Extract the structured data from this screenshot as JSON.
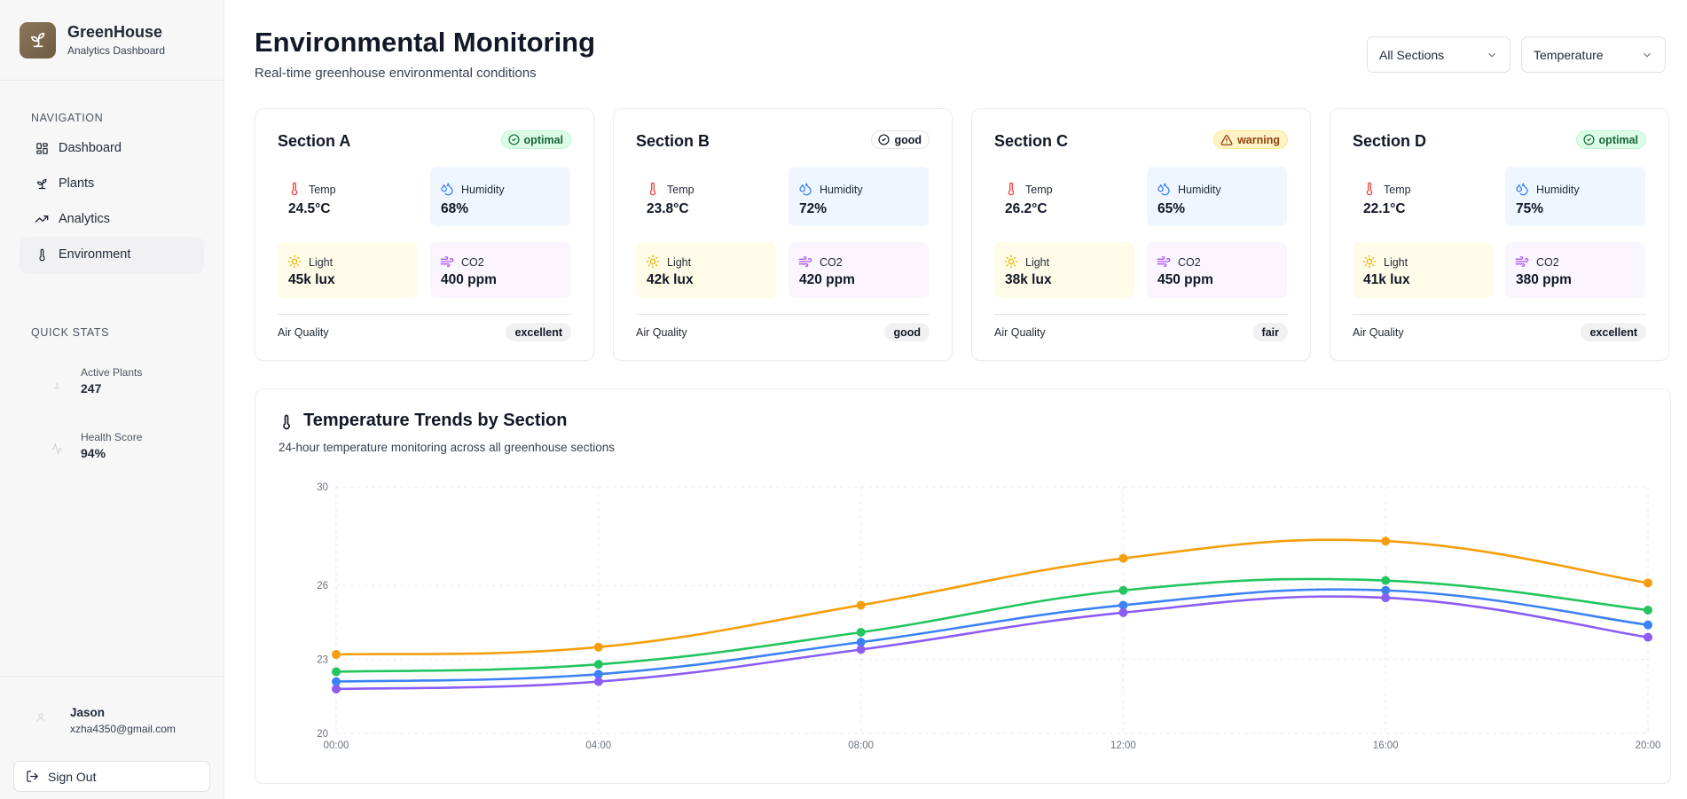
{
  "brand": {
    "title": "GreenHouse",
    "subtitle": "Analytics Dashboard"
  },
  "sidebar": {
    "nav_heading": "NAVIGATION",
    "items": [
      {
        "label": "Dashboard",
        "icon": "grid-icon",
        "active": false
      },
      {
        "label": "Plants",
        "icon": "sprout-icon",
        "active": false
      },
      {
        "label": "Analytics",
        "icon": "trending-up-icon",
        "active": false
      },
      {
        "label": "Environment",
        "icon": "thermometer-icon",
        "active": true
      }
    ],
    "quick_stats_heading": "QUICK STATS",
    "stats": [
      {
        "label": "Active Plants",
        "value": "247"
      },
      {
        "label": "Health Score",
        "value": "94%"
      }
    ]
  },
  "user": {
    "name": "Jason",
    "email": "xzha4350@gmail.com",
    "sign_out": "Sign Out"
  },
  "header": {
    "title": "Environmental Monitoring",
    "subtitle": "Real-time greenhouse environmental conditions",
    "section_filter": "All Sections",
    "metric_filter": "Temperature"
  },
  "labels": {
    "temp": "Temp",
    "humidity": "Humidity",
    "light": "Light",
    "co2": "CO2",
    "air_quality": "Air Quality"
  },
  "sections": [
    {
      "name": "Section A",
      "status": "optimal",
      "temp": "24.5°C",
      "humidity": "68%",
      "light": "45k lux",
      "co2": "400 ppm",
      "air_quality": "excellent"
    },
    {
      "name": "Section B",
      "status": "good",
      "temp": "23.8°C",
      "humidity": "72%",
      "light": "42k lux",
      "co2": "420 ppm",
      "air_quality": "good"
    },
    {
      "name": "Section C",
      "status": "warning",
      "temp": "26.2°C",
      "humidity": "65%",
      "light": "38k lux",
      "co2": "450 ppm",
      "air_quality": "fair"
    },
    {
      "name": "Section D",
      "status": "optimal",
      "temp": "22.1°C",
      "humidity": "75%",
      "light": "41k lux",
      "co2": "380 ppm",
      "air_quality": "excellent"
    }
  ],
  "colors": {
    "orange": "#f59e0b",
    "green": "#22c55e",
    "blue": "#3b82f6",
    "purple": "#8b5cf6"
  },
  "chart": {
    "title": "Temperature Trends by Section",
    "subtitle": "24-hour temperature monitoring across all greenhouse sections"
  },
  "chart_data": {
    "type": "line",
    "categories": [
      "00:00",
      "04:00",
      "08:00",
      "12:00",
      "16:00",
      "20:00"
    ],
    "y_ticks": [
      20,
      23,
      26,
      30
    ],
    "ylim": [
      20,
      30
    ],
    "grid": true,
    "series": [
      {
        "color": "#f59e0b",
        "values": [
          23.2,
          23.5,
          25.2,
          27.1,
          27.8,
          26.1
        ]
      },
      {
        "color": "#22c55e",
        "values": [
          22.5,
          22.8,
          24.1,
          25.8,
          26.2,
          25.0
        ]
      },
      {
        "color": "#3b82f6",
        "values": [
          22.1,
          22.4,
          23.7,
          25.2,
          25.8,
          24.4
        ]
      },
      {
        "color": "#8b5cf6",
        "values": [
          21.8,
          22.1,
          23.4,
          24.9,
          25.5,
          23.9
        ]
      }
    ]
  }
}
